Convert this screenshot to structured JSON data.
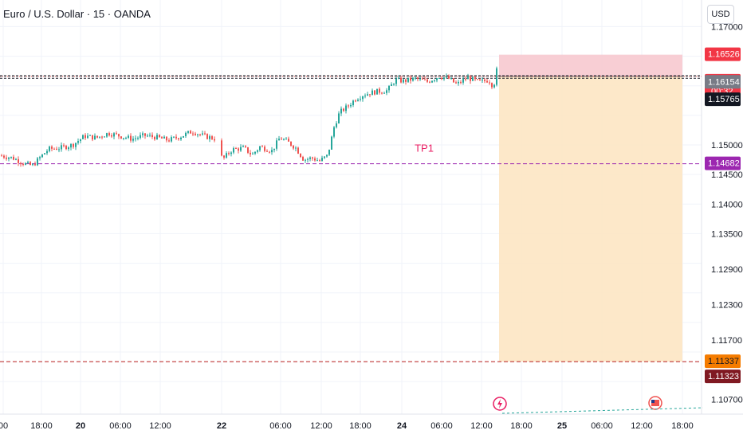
{
  "header": {
    "symbol_title": "Euro / U.S. Dollar · 15 · OANDA",
    "currency": "USD"
  },
  "colors": {
    "bull": "#26a69a",
    "bear": "#ef5350",
    "grid": "#f0f3fa",
    "stop_zone": "#f7c6cc",
    "target_zone": "#fde5c3",
    "tp_line": "#9c27b0",
    "entry_line": "#131722",
    "bottom_line": "#b71c1c"
  },
  "chart_data": {
    "type": "candlestick",
    "title": "Euro / U.S. Dollar · 15 · OANDA",
    "ylim": [
      1.1045,
      1.1745
    ],
    "y_ticks": [
      "1.17000",
      "1.16526",
      "1.16160",
      "1.16154",
      "1.15765",
      "1.15000",
      "1.14682",
      "1.14500",
      "1.14000",
      "1.13500",
      "1.12900",
      "1.12300",
      "1.11700",
      "1.11337",
      "1.11323",
      "1.10700"
    ],
    "grid_ticks": [
      1.17,
      1.165,
      1.16,
      1.155,
      1.15,
      1.145,
      1.14,
      1.135,
      1.13,
      1.125,
      1.12,
      1.115,
      1.11
    ],
    "y_tick_labels": [
      {
        "value": 1.17,
        "text": "1.17000"
      },
      {
        "value": 1.145,
        "text": "1.14500"
      },
      {
        "value": 1.14,
        "text": "1.14000"
      },
      {
        "value": 1.135,
        "text": "1.13500"
      },
      {
        "value": 1.129,
        "text": "1.12900"
      },
      {
        "value": 1.123,
        "text": "1.12300"
      },
      {
        "value": 1.117,
        "text": "1.11700"
      },
      {
        "value": 1.15,
        "text": "1.15000"
      },
      {
        "value": 1.107,
        "text": "1.10700"
      }
    ],
    "x_ticks": [
      "00",
      "18:00",
      "20",
      "06:00",
      "12:00",
      "22",
      "06:00",
      "12:00",
      "18:00",
      "24",
      "06:00",
      "12:00",
      "18:00",
      "25",
      "06:00",
      "12:00",
      "18:00"
    ],
    "price_badges": [
      {
        "value": 1.16526,
        "text": "1.16526",
        "bg": "#f23645",
        "fg": "#ffffff"
      },
      {
        "value": 1.1616,
        "text": "1.16160",
        "sub": "00:32",
        "bg": "#f23645",
        "fg": "#ffffff"
      },
      {
        "value": 1.16154,
        "text": "1.16154",
        "bg": "#787b86",
        "fg": "#ffffff"
      },
      {
        "value": 1.15765,
        "text": "1.15765",
        "bg": "#131722",
        "fg": "#ffffff"
      },
      {
        "value": 1.14682,
        "text": "1.14682",
        "bg": "#9c27b0",
        "fg": "#ffffff"
      },
      {
        "value": 1.11337,
        "text": "1.11337",
        "bg": "#f57c00",
        "fg": "#131722"
      },
      {
        "value": 1.11323,
        "text": "1.11323",
        "bg": "#801922",
        "fg": "#ffffff"
      }
    ],
    "annotations": [
      {
        "text": "TP1",
        "price": 1.1494
      }
    ],
    "levels": {
      "entry": 1.16154,
      "current": 1.1616,
      "tp1": 1.14682,
      "stop": 1.16526,
      "target": 1.11337,
      "bottom": 1.11323
    },
    "price_path": [
      [
        0,
        1.1482
      ],
      [
        15,
        1.1478
      ],
      [
        30,
        1.1468
      ],
      [
        40,
        1.1465
      ],
      [
        50,
        1.148
      ],
      [
        60,
        1.1493
      ],
      [
        75,
        1.1495
      ],
      [
        90,
        1.15
      ],
      [
        105,
        1.1515
      ],
      [
        120,
        1.1512
      ],
      [
        135,
        1.152
      ],
      [
        150,
        1.1515
      ],
      [
        165,
        1.151
      ],
      [
        180,
        1.1516
      ],
      [
        195,
        1.1513
      ],
      [
        210,
        1.1508
      ],
      [
        225,
        1.1514
      ],
      [
        240,
        1.1523
      ],
      [
        255,
        1.1515
      ],
      [
        270,
        1.151
      ],
      [
        278,
        1.1475
      ],
      [
        290,
        1.1492
      ],
      [
        305,
        1.1495
      ],
      [
        315,
        1.1483
      ],
      [
        325,
        1.1497
      ],
      [
        340,
        1.149
      ],
      [
        350,
        1.1512
      ],
      [
        360,
        1.1505
      ],
      [
        370,
        1.1495
      ],
      [
        380,
        1.1475
      ],
      [
        390,
        1.1478
      ],
      [
        400,
        1.1473
      ],
      [
        410,
        1.1482
      ],
      [
        418,
        1.153
      ],
      [
        425,
        1.1555
      ],
      [
        435,
        1.1565
      ],
      [
        445,
        1.1578
      ],
      [
        455,
        1.1585
      ],
      [
        470,
        1.159
      ],
      [
        485,
        1.1592
      ],
      [
        495,
        1.161
      ],
      [
        505,
        1.1608
      ],
      [
        520,
        1.1612
      ],
      [
        535,
        1.1607
      ],
      [
        550,
        1.1616
      ],
      [
        562,
        1.1612
      ],
      [
        572,
        1.1602
      ],
      [
        585,
        1.1614
      ],
      [
        600,
        1.1606
      ],
      [
        612,
        1.161
      ],
      [
        618,
        1.1598
      ],
      [
        624,
        1.164
      ],
      [
        628,
        1.1628
      ]
    ],
    "position_zone": {
      "x_start": 626,
      "x_end": 856,
      "stop_from": 1.16526,
      "target_to": 1.11337
    }
  }
}
